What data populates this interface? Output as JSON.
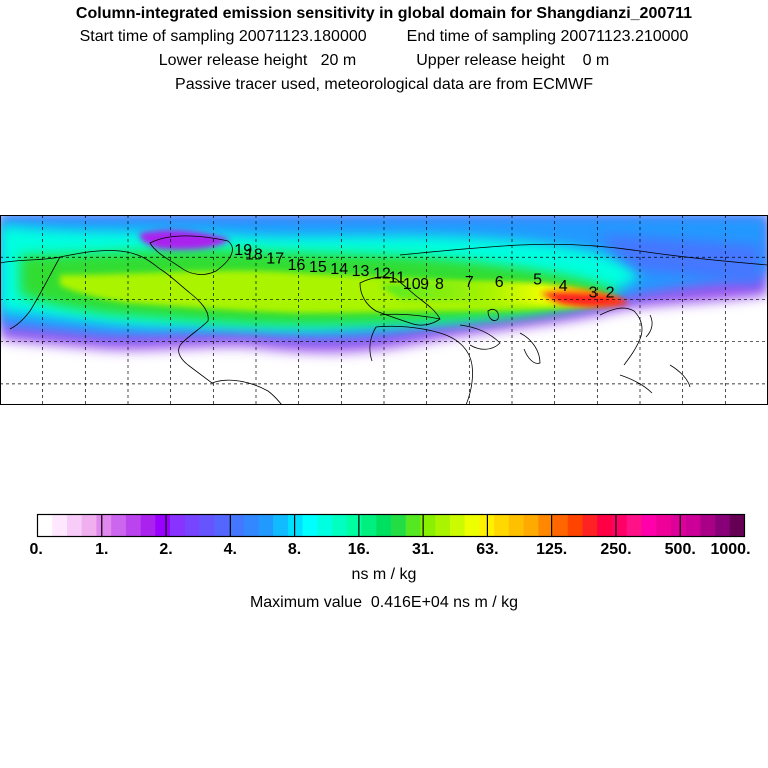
{
  "header": {
    "title": "Column-integrated emission sensitivity in global domain for Shangdianzi_200711",
    "start_label": "Start time of sampling",
    "start_value": "20071123.180000",
    "end_label": "End time of sampling",
    "end_value": "20071123.210000",
    "lower_label": "Lower release height",
    "lower_value": "20 m",
    "upper_label": "Upper release height",
    "upper_value": "0 m",
    "note": "Passive tracer used, meteorological data are from ECMWF"
  },
  "map": {
    "trajectory_labels": [
      {
        "text": "2",
        "lon": 106,
        "lat": 41
      },
      {
        "text": "3",
        "lon": 98,
        "lat": 41
      },
      {
        "text": "4",
        "lon": 84,
        "lat": 44
      },
      {
        "text": "5",
        "lon": 72,
        "lat": 47
      },
      {
        "text": "6",
        "lon": 54,
        "lat": 46
      },
      {
        "text": "7",
        "lon": 40,
        "lat": 46
      },
      {
        "text": "8",
        "lon": 26,
        "lat": 45
      },
      {
        "text": "9",
        "lon": 19,
        "lat": 45
      },
      {
        "text": "10",
        "lon": 13,
        "lat": 45
      },
      {
        "text": "11",
        "lon": 6,
        "lat": 48
      },
      {
        "text": "12",
        "lon": -1,
        "lat": 50
      },
      {
        "text": "13",
        "lon": -11,
        "lat": 51
      },
      {
        "text": "14",
        "lon": -21,
        "lat": 52
      },
      {
        "text": "15",
        "lon": -31,
        "lat": 53
      },
      {
        "text": "16",
        "lon": -41,
        "lat": 54
      },
      {
        "text": "17",
        "lon": -51,
        "lat": 57
      },
      {
        "text": "18",
        "lon": -61,
        "lat": 59
      },
      {
        "text": "19",
        "lon": -66,
        "lat": 61
      }
    ],
    "colors": {
      "ocean_bg": "#ffffff",
      "coast": "#000000",
      "grid": "#000000"
    }
  },
  "colorbar": {
    "tick_labels": [
      "0.",
      "1.",
      "2.",
      "4.",
      "8.",
      "16.",
      "31.",
      "63.",
      "125.",
      "250.",
      "500.",
      "1000."
    ],
    "colors": [
      "#ffffff",
      "#ffe8ff",
      "#f8ccf8",
      "#f0b0f0",
      "#e088ee",
      "#cc66ee",
      "#bb44ee",
      "#aa22ee",
      "#9900ff",
      "#8833ff",
      "#7744ff",
      "#6655ff",
      "#5566ff",
      "#4477ff",
      "#3388ff",
      "#2299ff",
      "#11bbff",
      "#00dfff",
      "#00ffff",
      "#00ffe0",
      "#00ffc0",
      "#00ffa0",
      "#00f080",
      "#00e060",
      "#22dd44",
      "#55e822",
      "#88f000",
      "#aaf400",
      "#ccfa00",
      "#eeff00",
      "#fff000",
      "#ffd800",
      "#ffc000",
      "#ffaa00",
      "#ff8800",
      "#ff6600",
      "#ff4400",
      "#ff2222",
      "#ff0044",
      "#ff0066",
      "#ff1188",
      "#ff00aa",
      "#ee0099",
      "#dd0099",
      "#cc0099",
      "#aa0088",
      "#880077",
      "#660055"
    ],
    "unit": "ns m / kg",
    "max_label": "Maximum value",
    "max_value": "0.416E+04 ns m / kg"
  }
}
